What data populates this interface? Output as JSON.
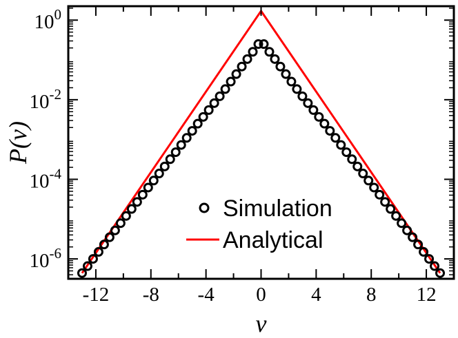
{
  "chart_data": {
    "type": "line",
    "title": "",
    "xlabel": "v",
    "ylabel": "P(v)",
    "xlim": [
      -14,
      14
    ],
    "ylim_log10": [
      -6.5,
      0.35
    ],
    "y_scale": "log",
    "grid": false,
    "legend_position": "bottom-right",
    "x_ticks": [
      -12,
      -8,
      -4,
      0,
      4,
      8,
      12
    ],
    "x_tick_labels": [
      "-12",
      "-8",
      "-4",
      "0",
      "4",
      "8",
      "12"
    ],
    "y_ticks_exponents": [
      0,
      -2,
      -4,
      -6
    ],
    "y_tick_base": "10",
    "y_tick_exponent_labels": [
      "0",
      "-2",
      "-4",
      "-6"
    ],
    "series": [
      {
        "name": "Simulation",
        "style": "open-circle",
        "color": "#000000",
        "x": [
          -13.0,
          -12.6,
          -12.2,
          -11.8,
          -11.4,
          -11.0,
          -10.6,
          -10.2,
          -9.8,
          -9.4,
          -9.0,
          -8.6,
          -8.2,
          -7.8,
          -7.4,
          -7.0,
          -6.6,
          -6.2,
          -5.8,
          -5.4,
          -5.0,
          -4.6,
          -4.2,
          -3.8,
          -3.4,
          -3.0,
          -2.6,
          -2.2,
          -1.8,
          -1.4,
          -1.0,
          -0.6,
          -0.2,
          0.2,
          0.6,
          1.0,
          1.4,
          1.8,
          2.2,
          2.6,
          3.0,
          3.4,
          3.8,
          4.2,
          4.6,
          5.0,
          5.4,
          5.8,
          6.2,
          6.6,
          7.0,
          7.4,
          7.8,
          8.2,
          8.6,
          9.0,
          9.4,
          9.8,
          10.2,
          10.6,
          11.0,
          11.4,
          11.8,
          12.2,
          12.6,
          13.0
        ],
        "y": [
          4.4e-07,
          6.6e-07,
          1e-06,
          1.5e-06,
          2.3e-06,
          3.5e-06,
          5.2e-06,
          7.9e-06,
          1.2e-05,
          1.8e-05,
          2.7e-05,
          4.1e-05,
          6.2e-05,
          9.3e-05,
          0.00014,
          0.00021,
          0.00032,
          0.00048,
          0.00073,
          0.0011,
          0.00165,
          0.0025,
          0.0037,
          0.0055,
          0.0082,
          0.0122,
          0.0185,
          0.0285,
          0.044,
          0.068,
          0.105,
          0.16,
          0.25,
          0.25,
          0.16,
          0.105,
          0.068,
          0.044,
          0.0285,
          0.0185,
          0.0122,
          0.0082,
          0.0055,
          0.0037,
          0.0025,
          0.00165,
          0.0011,
          0.00073,
          0.00048,
          0.00032,
          0.00021,
          0.00014,
          9.3e-05,
          6.2e-05,
          4.1e-05,
          2.7e-05,
          1.8e-05,
          1.2e-05,
          7.9e-06,
          5.2e-06,
          3.5e-06,
          2.3e-06,
          1.5e-06,
          1e-06,
          6.6e-07,
          4.4e-07
        ]
      },
      {
        "name": "Analytical",
        "style": "line",
        "color": "#ff0000",
        "x": [
          -13.0,
          0.0,
          13.0
        ],
        "y": [
          4.4e-07,
          1.7,
          4.4e-07
        ]
      }
    ]
  }
}
